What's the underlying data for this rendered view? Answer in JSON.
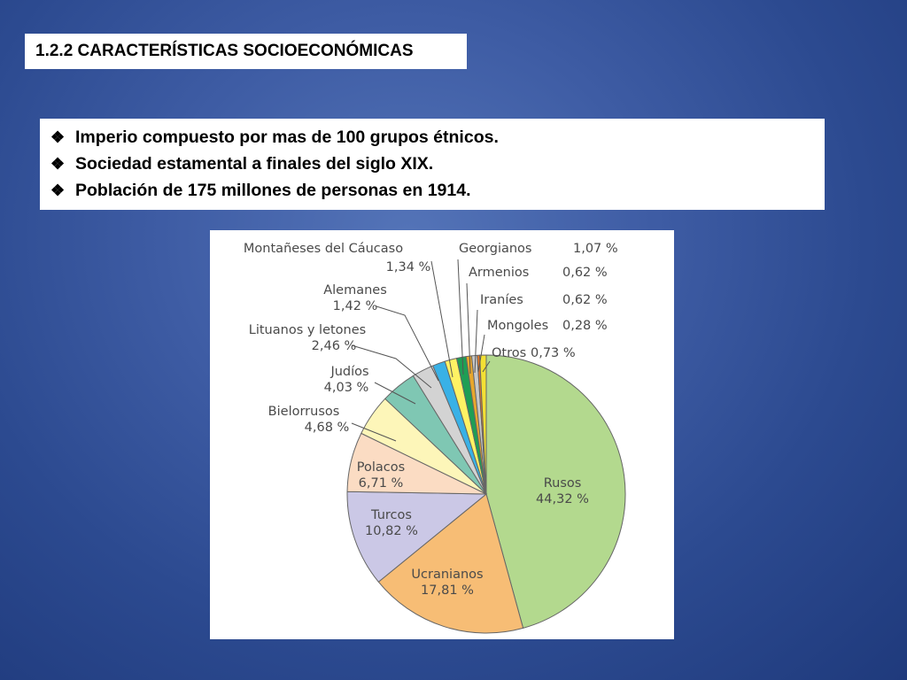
{
  "slide": {
    "title": "1.2.2 CARACTERÍSTICAS SOCIOECONÓMICAS",
    "bullets": [
      "Imperio compuesto por mas de 100 grupos étnicos.",
      "Sociedad estamental a finales del siglo XIX.",
      "Población de 175 millones de personas en 1914."
    ],
    "bullet_icon": "diamond-bullet-icon"
  },
  "chart_data": {
    "type": "pie",
    "title": "",
    "unit": "%",
    "slices": [
      {
        "label": "Rusos",
        "value": 44.32,
        "value_text": "44,32 %",
        "color": "#b3d98e"
      },
      {
        "label": "Ucranianos",
        "value": 17.81,
        "value_text": "17,81 %",
        "color": "#f7bd75"
      },
      {
        "label": "Turcos",
        "value": 10.82,
        "value_text": "10,82 %",
        "color": "#cbc8e6"
      },
      {
        "label": "Polacos",
        "value": 6.71,
        "value_text": "6,71 %",
        "color": "#fbdcc3"
      },
      {
        "label": "Bielorrusos",
        "value": 4.68,
        "value_text": "4,68 %",
        "color": "#fdf6b9"
      },
      {
        "label": "Judíos",
        "value": 4.03,
        "value_text": "4,03 %",
        "color": "#7fc7b3"
      },
      {
        "label": "Lituanos y letones",
        "value": 2.46,
        "value_text": "2,46 %",
        "color": "#d3d3d3"
      },
      {
        "label": "Alemanes",
        "value": 1.42,
        "value_text": "1,42 %",
        "color": "#39b1e6"
      },
      {
        "label": "Montañeses del Cáucaso",
        "value": 1.34,
        "value_text": "1,34 %",
        "color": "#fff264"
      },
      {
        "label": "Georgianos",
        "value": 1.07,
        "value_text": "1,07 %",
        "color": "#1e9e55"
      },
      {
        "label": "Armenios",
        "value": 0.62,
        "value_text": "0,62 %",
        "color": "#e8a72c"
      },
      {
        "label": "Iraníes",
        "value": 0.62,
        "value_text": "0,62 %",
        "color": "#c8c8c8"
      },
      {
        "label": "Mongoles",
        "value": 0.28,
        "value_text": "0,28 %",
        "color": "#e87722"
      },
      {
        "label": "Otros",
        "value": 0.73,
        "value_text": "0,73 %",
        "color": "#f3e034"
      }
    ]
  }
}
